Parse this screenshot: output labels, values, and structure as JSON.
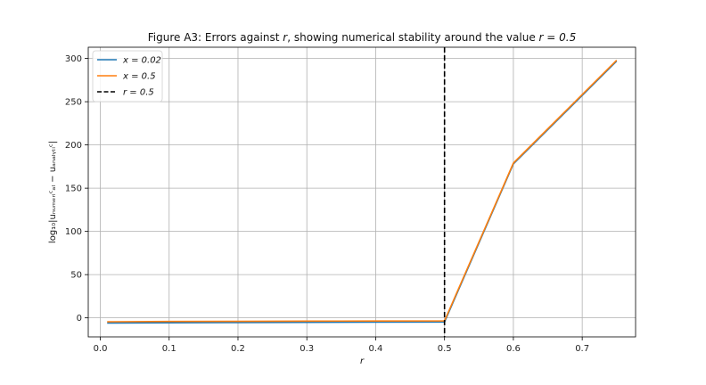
{
  "chart_data": {
    "type": "line",
    "title_prefix": "Figure A3: Errors against ",
    "title_r": "r",
    "title_mid": ", showing numerical stability around the value ",
    "title_eq": "r = 0.5",
    "xlabel": "r",
    "ylabel": "log₁₀|uₙᵤₘₑᵣᵢᶜₐₗ − uₐₙₐₗᵧₜᵢᶜ|",
    "xlim": [
      -0.0175,
      0.7775
    ],
    "ylim": [
      -22,
      313
    ],
    "xticks": [
      0.0,
      0.1,
      0.2,
      0.3,
      0.4,
      0.5,
      0.6,
      0.7
    ],
    "yticks": [
      0,
      50,
      100,
      150,
      200,
      250,
      300
    ],
    "grid": true,
    "legend_position": "top-left",
    "series": [
      {
        "name": "x = 0.02",
        "color": "#1f77b4",
        "x": [
          0.01,
          0.1,
          0.2,
          0.3,
          0.4,
          0.5,
          0.6,
          0.75
        ],
        "y": [
          -6,
          -5.7,
          -5.4,
          -5.2,
          -5.0,
          -4.8,
          178,
          297
        ]
      },
      {
        "name": "x = 0.5",
        "color": "#ff7f0e",
        "x": [
          0.01,
          0.1,
          0.2,
          0.3,
          0.4,
          0.5,
          0.6,
          0.75
        ],
        "y": [
          -4.5,
          -4.2,
          -4.0,
          -3.8,
          -3.6,
          -3.5,
          179,
          298
        ]
      }
    ],
    "reference_line": {
      "name": "r = 0.5",
      "x": 0.5,
      "color": "#000000",
      "style": "dashed"
    }
  }
}
